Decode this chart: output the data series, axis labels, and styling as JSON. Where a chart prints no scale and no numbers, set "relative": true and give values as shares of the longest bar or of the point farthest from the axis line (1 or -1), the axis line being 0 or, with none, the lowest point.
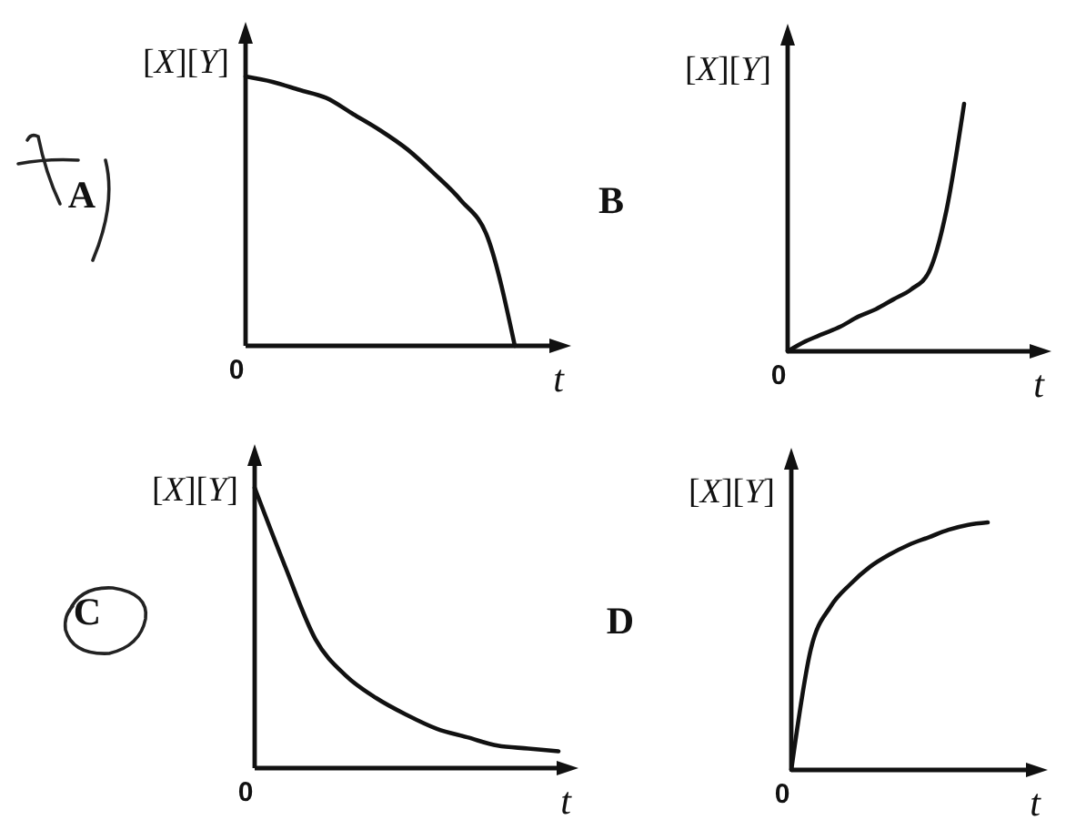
{
  "chart_data": [
    {
      "type": "line",
      "title": "A",
      "ylabel": "[X][Y]",
      "xlabel": "t",
      "annotations": [
        "0"
      ],
      "relative": true,
      "categories": [
        null,
        null,
        null,
        null,
        null,
        null,
        null,
        null,
        null,
        null,
        null
      ],
      "values": [
        1,
        0.98,
        0.95,
        0.92,
        0.86,
        0.8,
        0.73,
        0.64,
        0.54,
        0.4,
        0
      ],
      "color": "#111111"
    },
    {
      "type": "line",
      "title": "B",
      "ylabel": "[X][Y]",
      "xlabel": "t",
      "annotations": [
        "0"
      ],
      "relative": true,
      "categories": [
        null,
        null,
        null,
        null,
        null,
        null,
        null,
        null,
        null,
        null,
        null
      ],
      "values": [
        0,
        0.04,
        0.07,
        0.1,
        0.14,
        0.17,
        0.21,
        0.25,
        0.32,
        0.57,
        1
      ],
      "color": "#111111"
    },
    {
      "type": "line",
      "title": "C",
      "ylabel": "[X][Y]",
      "xlabel": "t",
      "annotations": [
        "0"
      ],
      "relative": true,
      "categories": [
        null,
        null,
        null,
        null,
        null,
        null,
        null,
        null,
        null,
        null,
        null
      ],
      "values": [
        1,
        0.72,
        0.46,
        0.33,
        0.25,
        0.19,
        0.14,
        0.11,
        0.08,
        0.07,
        0.06
      ],
      "color": "#111111"
    },
    {
      "type": "line",
      "title": "D",
      "ylabel": "[X][Y]",
      "xlabel": "t",
      "annotations": [
        "0"
      ],
      "relative": true,
      "categories": [
        null,
        null,
        null,
        null,
        null,
        null,
        null,
        null,
        null,
        null,
        null
      ],
      "values": [
        0,
        0.49,
        0.66,
        0.75,
        0.82,
        0.87,
        0.91,
        0.94,
        0.97,
        0.99,
        1
      ],
      "color": "#111111"
    }
  ]
}
